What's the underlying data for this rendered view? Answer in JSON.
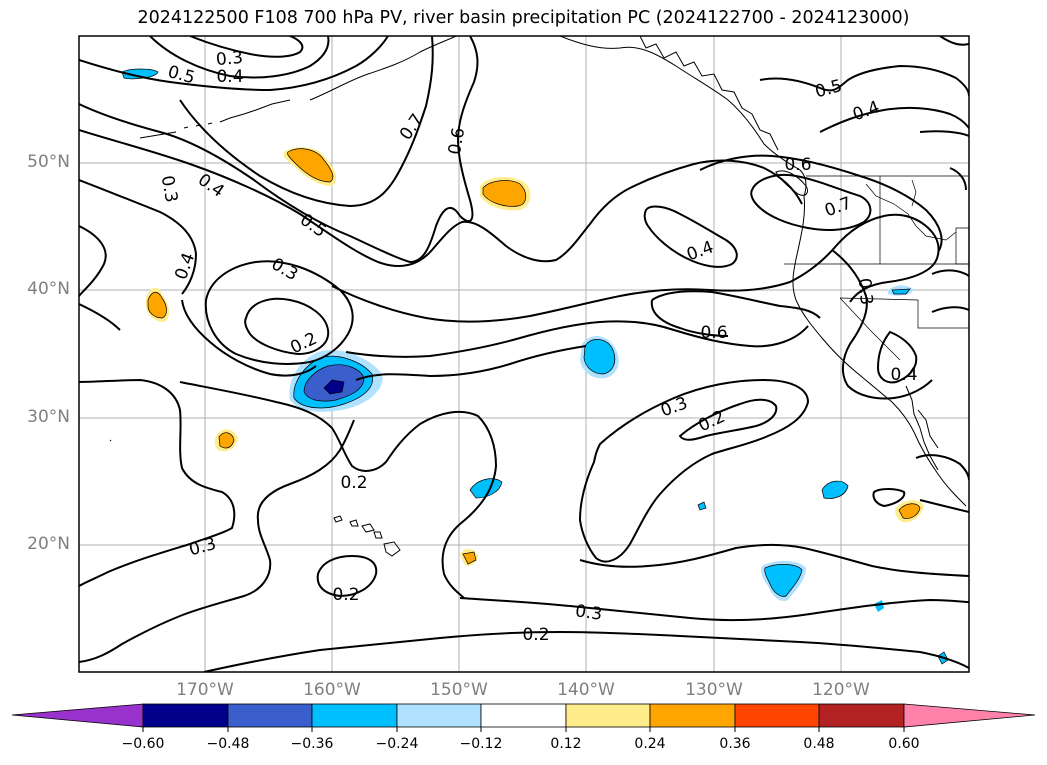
{
  "title": "2024122500 F108 700 hPa PV, river basin precipitation PC (2024122700 - 2024123000)",
  "lat_labels": [
    "50°N",
    "40°N",
    "30°N",
    "20°N"
  ],
  "lon_labels": [
    "170°W",
    "160°W",
    "150°W",
    "140°W",
    "130°W",
    "120°W"
  ],
  "contour_labels": [
    "0.3",
    "0.4",
    "0.5",
    "0.7",
    "0.6",
    "0.3",
    "0.4",
    "0.5",
    "0.4",
    "0.3",
    "0.2",
    "0.6",
    "0.4",
    "0.7",
    "0.6",
    "0.5",
    "0.4",
    "0.3",
    "0.2",
    "0.2",
    "0.3",
    "0.2",
    "0.3",
    "0.2",
    "0.3",
    "0.4"
  ],
  "colorbar": {
    "ticks": [
      "−0.60",
      "−0.48",
      "−0.36",
      "−0.24",
      "−0.12",
      "0.12",
      "0.24",
      "0.36",
      "0.48",
      "0.60"
    ],
    "colors": [
      "#9932cc",
      "#00008b",
      "#3a5fcd",
      "#00bfff",
      "#b0e2ff",
      "#ffffff",
      "#ffec8b",
      "#ffa500",
      "#ff4500",
      "#b22222",
      "#ff82ab"
    ]
  }
}
